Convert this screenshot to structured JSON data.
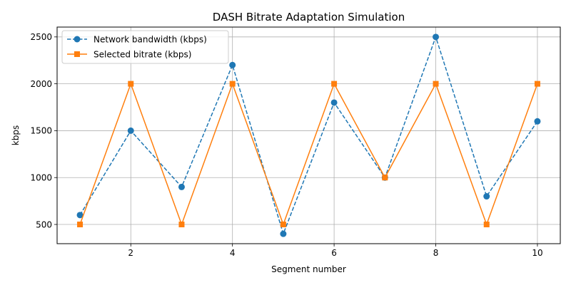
{
  "chart_data": {
    "type": "line",
    "title": "DASH Bitrate Adaptation Simulation",
    "xlabel": "Segment number",
    "ylabel": "kbps",
    "x": [
      1,
      2,
      3,
      4,
      5,
      6,
      7,
      8,
      9,
      10
    ],
    "xlim": [
      0.55,
      10.45
    ],
    "ylim": [
      295,
      2605
    ],
    "xticks": [
      2,
      4,
      6,
      8,
      10
    ],
    "yticks": [
      500,
      1000,
      1500,
      2000,
      2500
    ],
    "grid": true,
    "legend_position": "top-left",
    "series": [
      {
        "name": "Network bandwidth (kbps)",
        "values": [
          600,
          1500,
          900,
          2200,
          400,
          1800,
          1000,
          2500,
          800,
          1600
        ],
        "color": "#1f77b4",
        "line_style": "dashed",
        "marker": "circle"
      },
      {
        "name": "Selected bitrate (kbps)",
        "values": [
          500,
          2000,
          500,
          2000,
          500,
          2000,
          1000,
          2000,
          500,
          2000
        ],
        "color": "#ff7f0e",
        "line_style": "solid",
        "marker": "square"
      }
    ]
  }
}
